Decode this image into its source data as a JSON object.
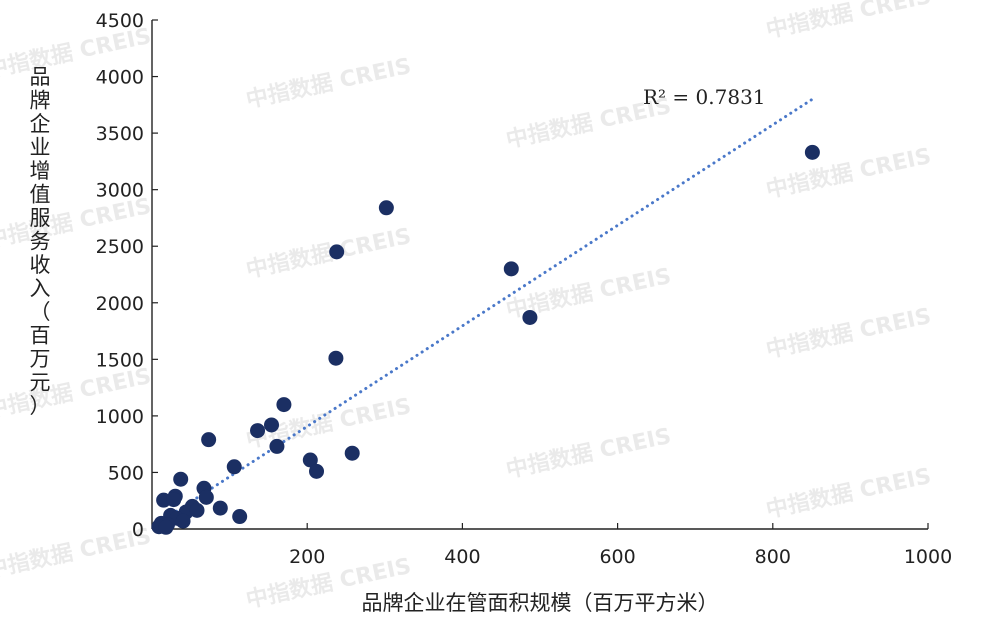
{
  "chart_data": {
    "type": "scatter",
    "xlabel": "品牌企业在管面积规模（百万平方米）",
    "ylabel": "品牌企业增值服务收入（百万元）",
    "xlim": [
      0,
      1000
    ],
    "ylim": [
      0,
      4500
    ],
    "x_ticks": [
      "200",
      "400",
      "600",
      "800",
      "1000"
    ],
    "y_ticks": [
      "0",
      "500",
      "1000",
      "1500",
      "2000",
      "2500",
      "3000",
      "3500",
      "4000",
      "4500"
    ],
    "points": [
      {
        "x": 851,
        "y": 3330
      },
      {
        "x": 302,
        "y": 2840
      },
      {
        "x": 238,
        "y": 2450
      },
      {
        "x": 463,
        "y": 2300
      },
      {
        "x": 487,
        "y": 1870
      },
      {
        "x": 237,
        "y": 1510
      },
      {
        "x": 170,
        "y": 1100
      },
      {
        "x": 154,
        "y": 920
      },
      {
        "x": 136,
        "y": 870
      },
      {
        "x": 73,
        "y": 790
      },
      {
        "x": 161,
        "y": 730
      },
      {
        "x": 258,
        "y": 670
      },
      {
        "x": 204,
        "y": 610
      },
      {
        "x": 106,
        "y": 550
      },
      {
        "x": 212,
        "y": 510
      },
      {
        "x": 37,
        "y": 440
      },
      {
        "x": 67,
        "y": 360
      },
      {
        "x": 70,
        "y": 280
      },
      {
        "x": 30,
        "y": 290
      },
      {
        "x": 15,
        "y": 255
      },
      {
        "x": 28,
        "y": 260
      },
      {
        "x": 52,
        "y": 200
      },
      {
        "x": 88,
        "y": 185
      },
      {
        "x": 44,
        "y": 150
      },
      {
        "x": 58,
        "y": 165
      },
      {
        "x": 24,
        "y": 120
      },
      {
        "x": 32,
        "y": 95
      },
      {
        "x": 113,
        "y": 110
      },
      {
        "x": 40,
        "y": 70
      },
      {
        "x": 12,
        "y": 50
      },
      {
        "x": 20,
        "y": 40
      },
      {
        "x": 9,
        "y": 20
      },
      {
        "x": 18,
        "y": 15
      }
    ],
    "trendline": {
      "x": [
        5,
        851
      ],
      "y": [
        40,
        3800
      ],
      "style": "dotted",
      "color": "#4a78c9"
    },
    "annotation": "R² = 0.7831",
    "point_color": "#1b2f63",
    "grid": false,
    "legend": "none",
    "watermark": "中指数据 CREIS"
  }
}
